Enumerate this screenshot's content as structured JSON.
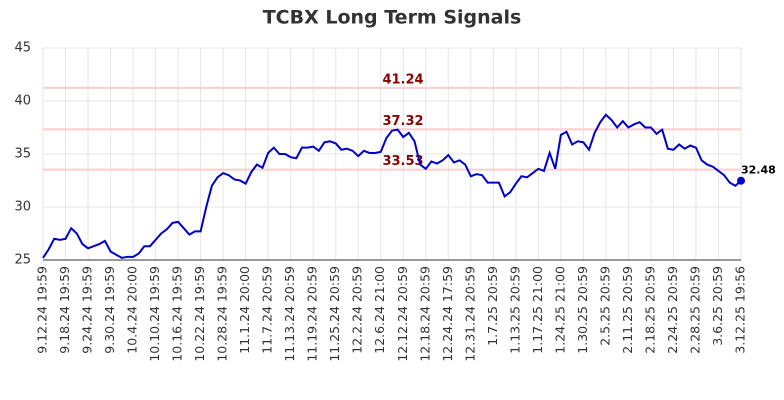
{
  "chart_data": {
    "type": "line",
    "title": "TCBX Long Term Signals",
    "categories": [
      "9.12.24 19:59",
      null,
      null,
      null,
      "9.18.24 19:59",
      null,
      null,
      null,
      "9.24.24 19:59",
      null,
      null,
      null,
      "9.30.24 19:59",
      null,
      null,
      null,
      "10.4.24 20:00",
      null,
      null,
      null,
      "10.10.24 19:59",
      null,
      null,
      null,
      "10.16.24 19:59",
      null,
      null,
      null,
      "10.22.24 19:59",
      null,
      null,
      null,
      "10.28.24 19:59",
      null,
      null,
      null,
      "11.1.24 20:00",
      null,
      null,
      null,
      "11.7.24 20:59",
      null,
      null,
      null,
      "11.13.24 20:59",
      null,
      null,
      null,
      "11.19.24 20:59",
      null,
      null,
      null,
      "11.25.24 20:59",
      null,
      null,
      null,
      "12.2.24 20:59",
      null,
      null,
      null,
      "12.6.24 21:00",
      null,
      null,
      null,
      "12.12.24 20:59",
      null,
      null,
      null,
      "12.18.24 20:59",
      null,
      null,
      null,
      "12.24.24 17:59",
      null,
      null,
      null,
      "12.31.24 20:59",
      null,
      null,
      null,
      "1.7.25 20:59",
      null,
      null,
      null,
      "1.13.25 20:59",
      null,
      null,
      null,
      "1.17.25 21:00",
      null,
      null,
      null,
      "1.24.25 21:00",
      null,
      null,
      null,
      "1.30.25 20:59",
      null,
      null,
      null,
      "2.5.25 20:59",
      null,
      null,
      null,
      "2.11.25 20:59",
      null,
      null,
      null,
      "2.18.25 20:59",
      null,
      null,
      null,
      "2.24.25 20:59",
      null,
      null,
      null,
      "2.28.25 20:59",
      null,
      null,
      null,
      "3.6.25 20:59",
      null,
      null,
      null,
      "3.12.25 19:56"
    ],
    "values": [
      25.2,
      26,
      27.0,
      26.9,
      27.0,
      28.0,
      27.5,
      26.5,
      26.1,
      26.3,
      26.5,
      26.8,
      25.8,
      25.5,
      25.2,
      25.3,
      25.3,
      25.6,
      26.3,
      26.3,
      26.9,
      27.5,
      27.9,
      28.5,
      28.6,
      28.0,
      27.4,
      27.7,
      27.7,
      30,
      32,
      32.8,
      33.2,
      33.0,
      32.6,
      32.5,
      32.2,
      33.3,
      34.0,
      33.7,
      35.1,
      35.6,
      35.0,
      35.0,
      34.7,
      34.6,
      35.6,
      35.6,
      35.7,
      35.3,
      36.1,
      36.2,
      36.0,
      35.4,
      35.5,
      35.3,
      34.8,
      35.3,
      35.1,
      35.1,
      35.2,
      36.5,
      37.2,
      37.3,
      36.6,
      37.0,
      36.2,
      34.0,
      33.6,
      34.3,
      34.1,
      34.4,
      34.9,
      34.2,
      34.4,
      34.0,
      32.9,
      33.1,
      33.0,
      32.3,
      32.3,
      32.3,
      31.0,
      31.4,
      32.2,
      32.9,
      32.8,
      33.2,
      33.6,
      33.4,
      35.1,
      33.6,
      36.8,
      37.1,
      35.9,
      36.2,
      36.1,
      35.4,
      37.0,
      38.0,
      38.7,
      38.2,
      37.5,
      38.1,
      37.5,
      37.8,
      38.0,
      37.5,
      37.5,
      36.9,
      37.3,
      35.5,
      35.4,
      35.9,
      35.5,
      35.8,
      35.6,
      34.4,
      34.0,
      33.8,
      33.4,
      33.0,
      32.3,
      32.0,
      32.48
    ],
    "color": "#0000cc",
    "last_value_label": true,
    "reference_lines": [
      {
        "value": 41.24,
        "color": "#ffcccc",
        "label_color": "#8b0000"
      },
      {
        "value": 37.32,
        "color": "#ffcccc",
        "label_color": "#8b0000"
      },
      {
        "value": 33.53,
        "color": "#ffcccc",
        "label_color": "#8b0000"
      }
    ],
    "ylim": [
      25,
      45
    ],
    "yticks": [
      25,
      30,
      35,
      40,
      45
    ],
    "grid": true
  }
}
